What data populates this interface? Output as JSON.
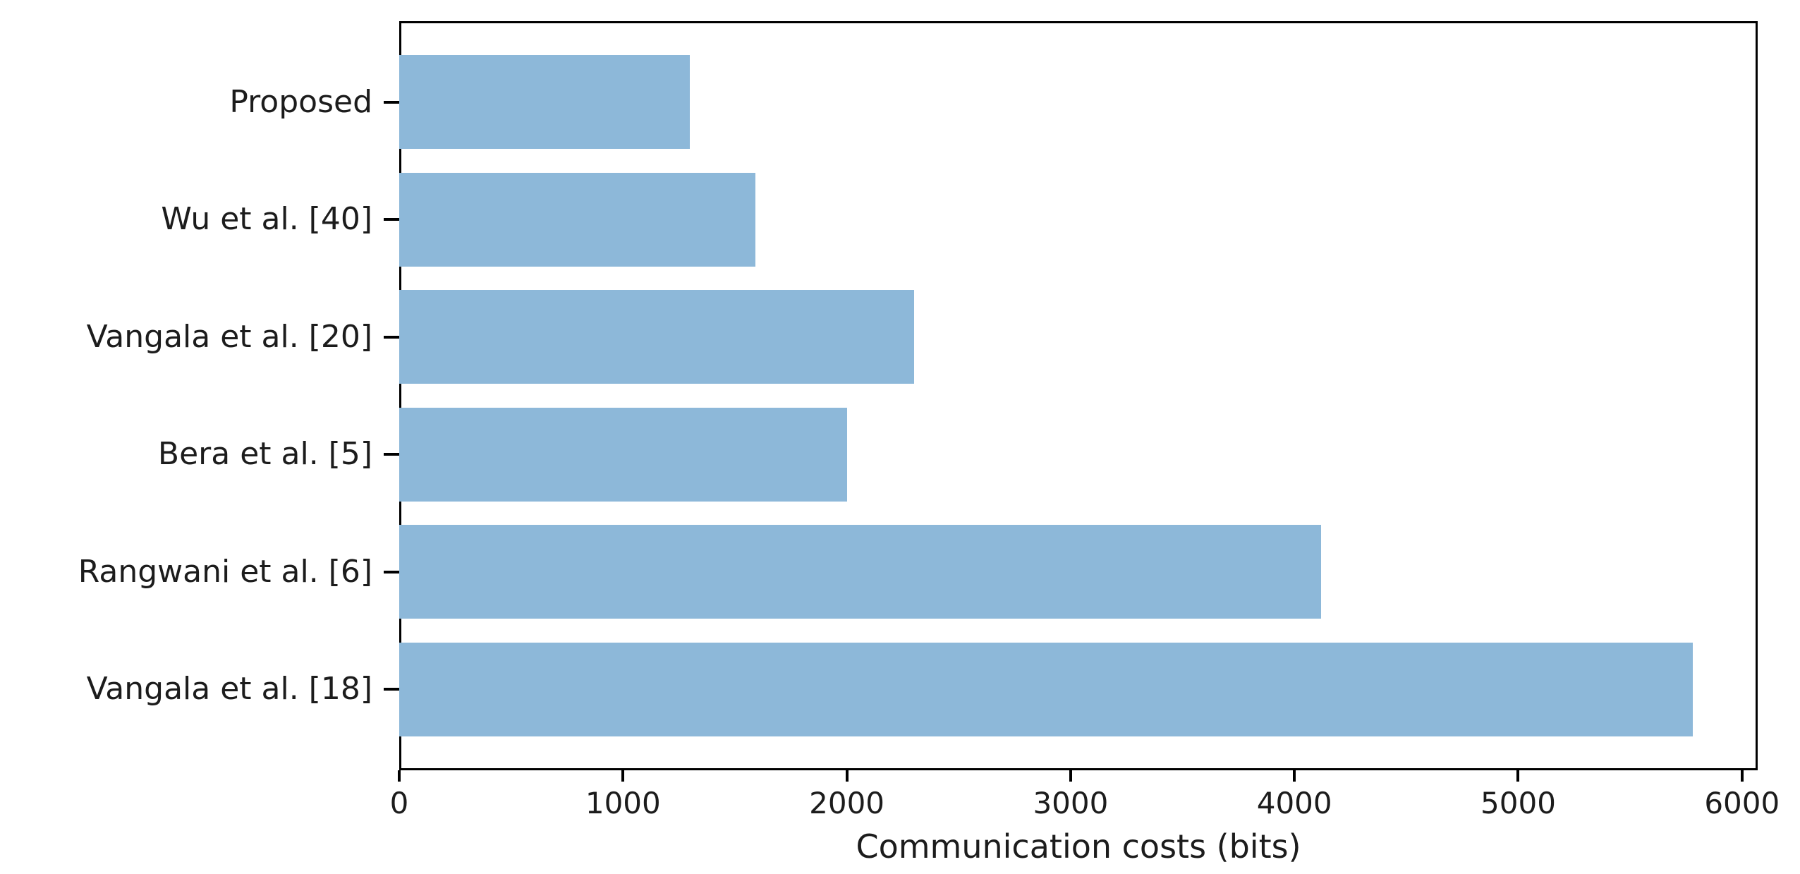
{
  "chart_data": {
    "type": "bar",
    "orientation": "horizontal",
    "title": "",
    "xlabel": "Communication costs (bits)",
    "ylabel": "",
    "categories_top_to_bottom": [
      "Proposed",
      "Wu et al. [40]",
      "Vangala et al. [20]",
      "Bera et al. [5]",
      "Rangwani et al. [6]",
      "Vangala et al. [18]"
    ],
    "values_top_to_bottom": [
      1300,
      1590,
      2300,
      2000,
      4120,
      5780
    ],
    "x_ticks": [
      0,
      1000,
      2000,
      3000,
      4000,
      5000,
      6000
    ],
    "xlim": [
      0,
      6070
    ],
    "grid": false,
    "legend": "none",
    "bar_color": "#8db8d9",
    "axis_color": "#000000",
    "text_color": "#1c1c1c",
    "background_color": "#ffffff"
  }
}
